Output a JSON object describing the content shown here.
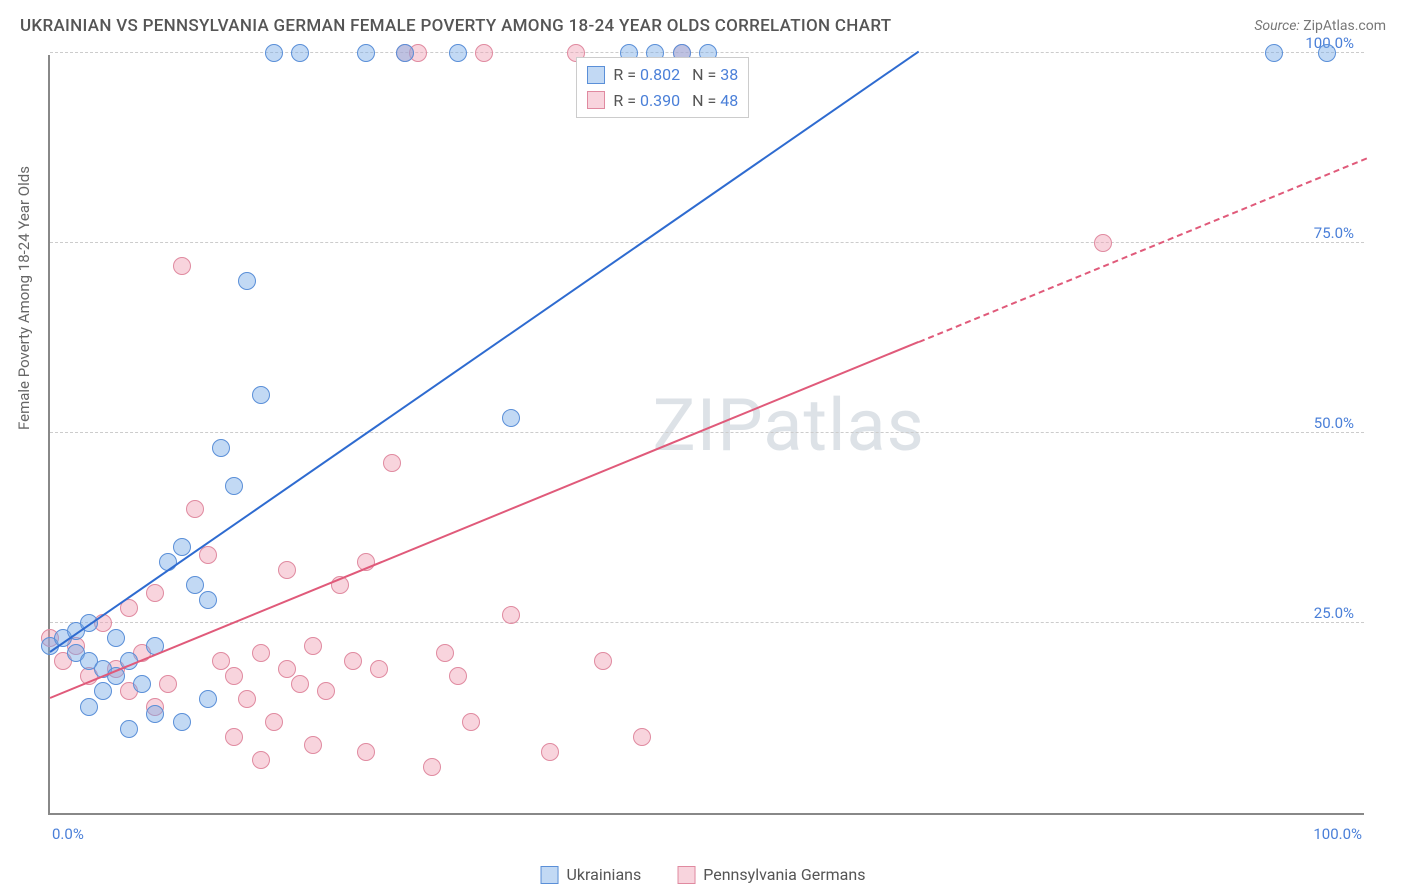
{
  "title": "UKRAINIAN VS PENNSYLVANIA GERMAN FEMALE POVERTY AMONG 18-24 YEAR OLDS CORRELATION CHART",
  "source_label": "Source: ",
  "source_value": "ZipAtlas.com",
  "watermark": "ZIPatlas",
  "y_axis_label": "Female Poverty Among 18-24 Year Olds",
  "chart": {
    "type": "scatter",
    "background_color": "#ffffff",
    "grid_color": "#cccccc",
    "axis_color": "#888888",
    "xlim": [
      0,
      100
    ],
    "ylim": [
      0,
      100
    ],
    "ytick_values": [
      25,
      50,
      75,
      100
    ],
    "ytick_labels": [
      "25.0%",
      "50.0%",
      "75.0%",
      "100.0%"
    ],
    "xtick_left": "0.0%",
    "xtick_right": "100.0%",
    "tick_label_color": "#4a7fd8",
    "tick_fontsize": 15,
    "title_fontsize": 17,
    "title_color": "#555555",
    "label_fontsize": 15,
    "label_color": "#666666",
    "point_radius": 9,
    "line_width": 2
  },
  "series": {
    "ukrainians": {
      "label": "Ukrainians",
      "R": "0.802",
      "N": "38",
      "color_fill": "rgba(120,170,230,0.45)",
      "color_stroke": "#5a8fd8",
      "line_color": "#2e6bd0",
      "trend": {
        "x1": 0,
        "y1": 21,
        "x2": 66,
        "y2": 100,
        "dash_after_x": 100
      },
      "points": [
        [
          0,
          22
        ],
        [
          1,
          23
        ],
        [
          2,
          21
        ],
        [
          2,
          24
        ],
        [
          3,
          20
        ],
        [
          3,
          25
        ],
        [
          4,
          19
        ],
        [
          5,
          18
        ],
        [
          5,
          23
        ],
        [
          6,
          20
        ],
        [
          7,
          17
        ],
        [
          8,
          22
        ],
        [
          9,
          33
        ],
        [
          10,
          35
        ],
        [
          11,
          30
        ],
        [
          12,
          28
        ],
        [
          14,
          43
        ],
        [
          15,
          70
        ],
        [
          17,
          100
        ],
        [
          13,
          48
        ],
        [
          16,
          55
        ],
        [
          19,
          100
        ],
        [
          24,
          100
        ],
        [
          27,
          100
        ],
        [
          31,
          100
        ],
        [
          35,
          52
        ],
        [
          44,
          100
        ],
        [
          46,
          100
        ],
        [
          48,
          100
        ],
        [
          50,
          100
        ],
        [
          93,
          100
        ],
        [
          97,
          100
        ],
        [
          6,
          11
        ],
        [
          8,
          13
        ],
        [
          10,
          12
        ],
        [
          12,
          15
        ],
        [
          3,
          14
        ],
        [
          4,
          16
        ]
      ]
    },
    "pa_germans": {
      "label": "Pennsylvania Germans",
      "R": "0.390",
      "N": "48",
      "color_fill": "rgba(240,160,180,0.45)",
      "color_stroke": "#e08aa0",
      "line_color": "#e05a7a",
      "trend": {
        "x1": 0,
        "y1": 15,
        "x2": 100,
        "y2": 86,
        "dash_after_x": 66
      },
      "points": [
        [
          0,
          23
        ],
        [
          1,
          20
        ],
        [
          2,
          22
        ],
        [
          3,
          18
        ],
        [
          4,
          25
        ],
        [
          5,
          19
        ],
        [
          6,
          16
        ],
        [
          7,
          21
        ],
        [
          8,
          14
        ],
        [
          9,
          17
        ],
        [
          10,
          72
        ],
        [
          11,
          40
        ],
        [
          12,
          34
        ],
        [
          13,
          20
        ],
        [
          14,
          18
        ],
        [
          15,
          15
        ],
        [
          16,
          21
        ],
        [
          17,
          12
        ],
        [
          18,
          19
        ],
        [
          19,
          17
        ],
        [
          20,
          22
        ],
        [
          21,
          16
        ],
        [
          22,
          30
        ],
        [
          23,
          20
        ],
        [
          24,
          8
        ],
        [
          25,
          19
        ],
        [
          26,
          46
        ],
        [
          27,
          100
        ],
        [
          28,
          100
        ],
        [
          29,
          6
        ],
        [
          30,
          21
        ],
        [
          31,
          18
        ],
        [
          32,
          12
        ],
        [
          33,
          100
        ],
        [
          35,
          26
        ],
        [
          38,
          8
        ],
        [
          40,
          100
        ],
        [
          42,
          20
        ],
        [
          45,
          10
        ],
        [
          48,
          100
        ],
        [
          18,
          32
        ],
        [
          14,
          10
        ],
        [
          16,
          7
        ],
        [
          20,
          9
        ],
        [
          24,
          33
        ],
        [
          8,
          29
        ],
        [
          6,
          27
        ],
        [
          80,
          75
        ]
      ]
    }
  },
  "legend_top": {
    "R_label": "R =",
    "N_label": "N =",
    "text_color": "#555555",
    "value_color": "#4a7fd8"
  }
}
